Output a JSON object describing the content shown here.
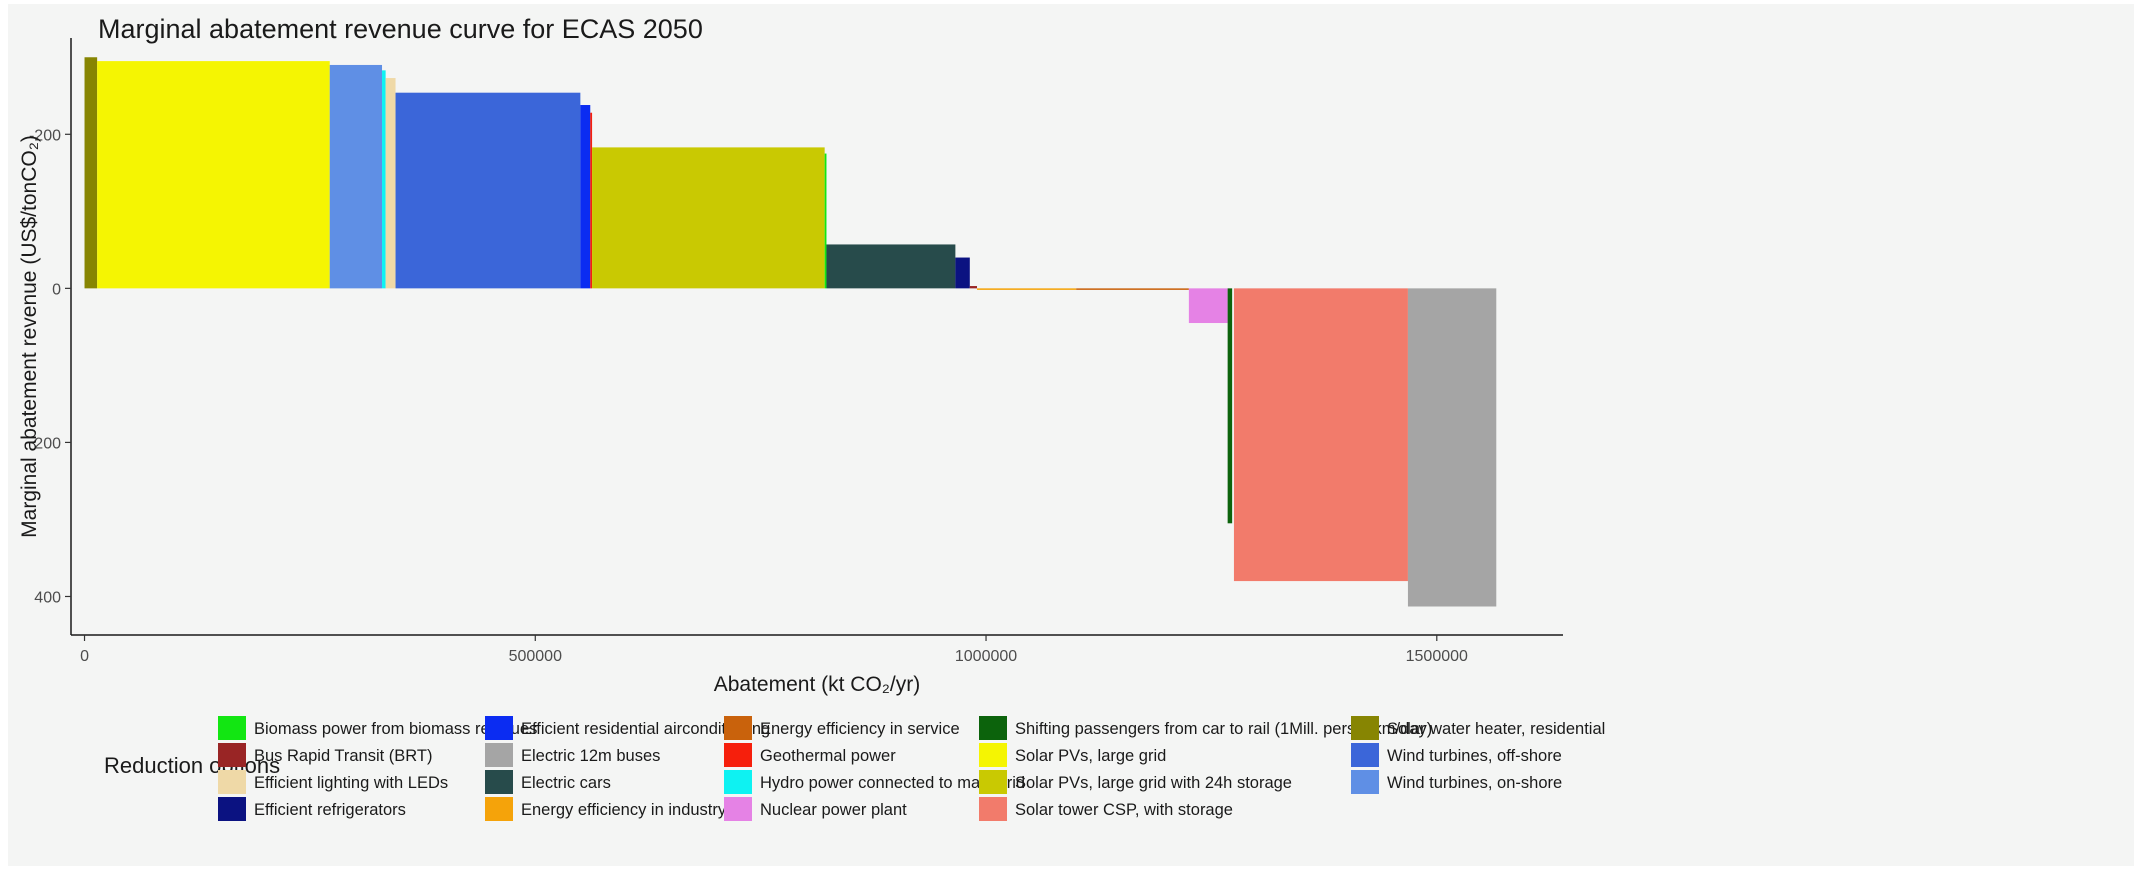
{
  "chart_data": {
    "type": "bar",
    "subtype": "marginal-abatement-curve",
    "title": "Marginal abatement revenue curve for ECAS 2050",
    "xlabel": "Abatement (kt CO₂/yr)",
    "ylabel": "Marginal abatement revenue (US$/tonCO₂)",
    "xlim": [
      -15000,
      1640000
    ],
    "ylim": [
      -325,
      450
    ],
    "y_reversed": true,
    "grid": false,
    "x_ticks": [
      0,
      500000,
      1000000,
      1500000
    ],
    "x_tick_labels": [
      "0",
      "500000",
      "1000000",
      "1500000"
    ],
    "y_ticks": [
      -200,
      0,
      200,
      400
    ],
    "y_tick_labels": [
      "-200",
      "0",
      "200",
      "400"
    ],
    "legend": {
      "title": "Reduction options",
      "position": "bottom",
      "columns": 5,
      "entries": [
        {
          "name": "Biomass power from biomass residues",
          "color": "#12e612"
        },
        {
          "name": "Bus Rapid Transit (BRT)",
          "color": "#992525"
        },
        {
          "name": "Efficient lighting with LEDs",
          "color": "#efd9a7"
        },
        {
          "name": "Efficient refrigerators",
          "color": "#0b1281"
        },
        {
          "name": "Efficient residential airconditioning",
          "color": "#0b2cf2"
        },
        {
          "name": "Electric 12m buses",
          "color": "#a5a5a5"
        },
        {
          "name": "Electric cars",
          "color": "#274b4b"
        },
        {
          "name": "Energy efficiency in industry",
          "color": "#f5a30a"
        },
        {
          "name": "Energy efficiency in service",
          "color": "#c9620c"
        },
        {
          "name": "Geothermal power",
          "color": "#f61f0c"
        },
        {
          "name": "Hydro power connected to main grid",
          "color": "#0ef2f2"
        },
        {
          "name": "Nuclear power plant",
          "color": "#e582e5"
        },
        {
          "name": "Shifting passengers from car to rail (1Mill. personkm/day)",
          "color": "#0c630c"
        },
        {
          "name": "Solar PVs, large grid",
          "color": "#f5f502"
        },
        {
          "name": "Solar PVs, large grid with 24h storage",
          "color": "#c9c902"
        },
        {
          "name": "Solar tower CSP, with storage",
          "color": "#f27b6b"
        },
        {
          "name": "Solar water heater, residential",
          "color": "#878502"
        },
        {
          "name": "Wind turbines, off-shore",
          "color": "#3b66d9"
        },
        {
          "name": "Wind turbines, on-shore",
          "color": "#5f8fe5"
        }
      ]
    },
    "bars": [
      {
        "name": "Solar water heater, residential",
        "x0": 0,
        "x1": 14000,
        "y": -300,
        "color": "#878502"
      },
      {
        "name": "Solar PVs, large grid",
        "x0": 14000,
        "x1": 272000,
        "y": -295,
        "color": "#f5f502"
      },
      {
        "name": "Wind turbines, on-shore",
        "x0": 272000,
        "x1": 330000,
        "y": -290,
        "color": "#5f8fe5"
      },
      {
        "name": "Hydro power connected to main grid",
        "x0": 330000,
        "x1": 334000,
        "y": -283,
        "color": "#0ef2f2"
      },
      {
        "name": "Efficient lighting with LEDs",
        "x0": 334000,
        "x1": 345000,
        "y": -273,
        "color": "#efd9a7"
      },
      {
        "name": "Wind turbines, off-shore",
        "x0": 345000,
        "x1": 550000,
        "y": -254,
        "color": "#3b66d9"
      },
      {
        "name": "Efficient residential airconditioning",
        "x0": 550000,
        "x1": 561000,
        "y": -238,
        "color": "#0b2cf2"
      },
      {
        "name": "Geothermal power",
        "x0": 561000,
        "x1": 563000,
        "y": -228,
        "color": "#f61f0c"
      },
      {
        "name": "Solar PVs, large grid with 24h storage",
        "x0": 563000,
        "x1": 821000,
        "y": -183,
        "color": "#c9c902"
      },
      {
        "name": "Biomass power from biomass residues",
        "x0": 821000,
        "x1": 823000,
        "y": -175,
        "color": "#12e612"
      },
      {
        "name": "Electric cars",
        "x0": 823000,
        "x1": 966000,
        "y": -57,
        "color": "#274b4b"
      },
      {
        "name": "Efficient refrigerators",
        "x0": 966000,
        "x1": 982000,
        "y": -40,
        "color": "#0b1281"
      },
      {
        "name": "Bus Rapid Transit (BRT)",
        "x0": 982000,
        "x1": 990000,
        "y": -3,
        "color": "#992525"
      },
      {
        "name": "Energy efficiency in industry",
        "x0": 990000,
        "x1": 1100000,
        "y": 2,
        "color": "#f5a30a"
      },
      {
        "name": "Energy efficiency in service",
        "x0": 1100000,
        "x1": 1225000,
        "y": 2,
        "color": "#c9620c"
      },
      {
        "name": "Nuclear power plant",
        "x0": 1225000,
        "x1": 1268000,
        "y": 45,
        "color": "#e582e5"
      },
      {
        "name": "Shifting passengers from car to rail (1Mill. personkm/day)",
        "x0": 1268000,
        "x1": 1273000,
        "y": 305,
        "color": "#0c630c"
      },
      {
        "name": "Solar tower CSP, with storage",
        "x0": 1275000,
        "x1": 1468000,
        "y": 380,
        "color": "#f27b6b"
      },
      {
        "name": "Electric 12m buses",
        "x0": 1468000,
        "x1": 1566000,
        "y": 413,
        "color": "#a5a5a5"
      }
    ]
  }
}
